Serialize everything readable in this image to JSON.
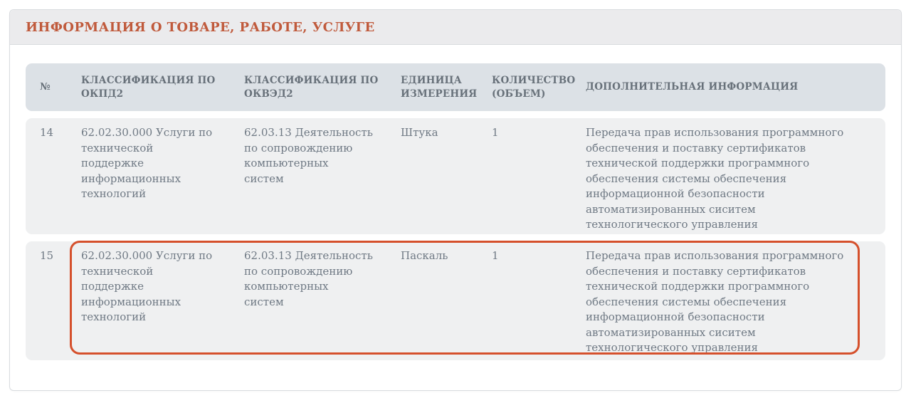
{
  "panel": {
    "title": "ИНФОРМАЦИЯ О ТОВАРЕ, РАБОТЕ, УСЛУГЕ"
  },
  "table": {
    "headers": {
      "num": "№",
      "okpd2": "КЛАССИФИКАЦИЯ ПО\nОКПД2",
      "okved2": "КЛАССИФИКАЦИЯ ПО\nОКВЭД2",
      "unit": "ЕДИНИЦА\nИЗМЕРЕНИЯ",
      "quantity": "КОЛИЧЕСТВО\n(ОБЪЕМ)",
      "info": "ДОПОЛНИТЕЛЬНАЯ ИНФОРМАЦИЯ"
    },
    "rows": [
      {
        "num": "14",
        "okpd2": "62.02.30.000 Услуги по\nтехнической\nподдержке\nинформационных\nтехнологий",
        "okved2": "62.03.13 Деятельность\nпо сопровождению\nкомпьютерных\nсистем",
        "unit": "Штука",
        "quantity": "1",
        "info": "Передача прав использования программного\nобеспечения и поставку сертификатов\nтехнической поддержки программного\nобеспечения системы обеспечения\nинформационной безопасности\nавтоматизированных сиситем\nтехнологического управления",
        "highlighted": false
      },
      {
        "num": "15",
        "okpd2": "62.02.30.000 Услуги по\nтехнической\nподдержке\nинформационных\nтехнологий",
        "okved2": "62.03.13 Деятельность\nпо сопровождению\nкомпьютерных\nсистем",
        "unit": "Паскаль",
        "quantity": "1",
        "info": "Передача прав использования программного\nобеспечения и поставку сертификатов\nтехнической поддержки программного\nобеспечения системы обеспечения\nинформационной безопасности\nавтоматизированных сиситем\nтехнологического управления",
        "highlighted": true
      }
    ]
  },
  "colors": {
    "title_text": "#c05a3c",
    "highlight_border": "#d5502c",
    "header_row_bg": "#dce1e6",
    "row_bg": "#eff0f1",
    "header_text": "#68717a",
    "body_text": "#6f7984",
    "card_border": "#d9dcdf",
    "card_header_bg": "#ebebed"
  }
}
